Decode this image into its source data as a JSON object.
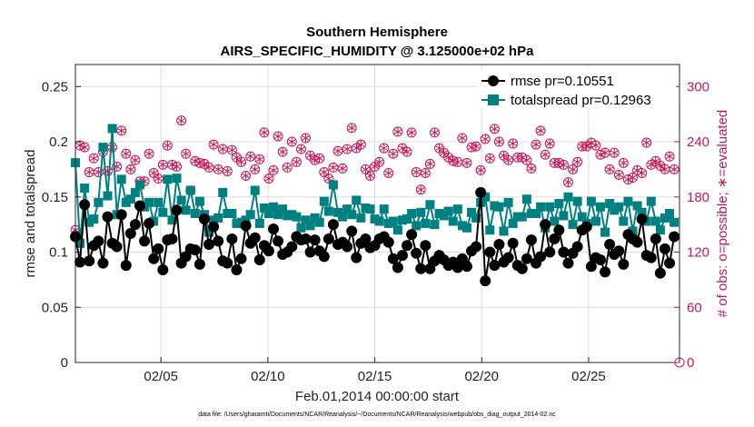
{
  "chart_data": {
    "type": "line",
    "title": "Southern Hemisphere",
    "subtitle": "AIRS_SPECIFIC_HUMIDITY @ 3.125000e+02 hPa",
    "xlabel": "Feb.01,2014 00:00:00 start",
    "ylabel_left": "rmse and totalspread",
    "ylabel_right": "# of obs: o=possible; ∗=evaluated",
    "footnote": "data file: /Users/gharamti/Documents/NCAR/Reanalysis/~/Documents/NCAR/Reanalysis/webpub/obs_diag_output_2014-02.nc",
    "xlim": [
      1,
      29.25
    ],
    "x_ticks": [
      5,
      10,
      15,
      20,
      25
    ],
    "x_tick_labels": [
      "02/05",
      "02/10",
      "02/15",
      "02/20",
      "02/25"
    ],
    "ylim_left": [
      0,
      0.27
    ],
    "y_ticks_left": [
      0,
      0.05,
      0.1,
      0.15,
      0.2,
      0.25
    ],
    "y_tick_labels_left": [
      "0",
      "0.05",
      "0.1",
      "0.15",
      "0.2",
      "0.25"
    ],
    "ylim_right": [
      0,
      324
    ],
    "y_ticks_right": [
      0,
      60,
      120,
      180,
      240,
      300
    ],
    "y_tick_labels_right": [
      "0",
      "60",
      "120",
      "180",
      "240",
      "300"
    ],
    "grid": true,
    "legend_position": "top-right",
    "colors": {
      "rmse": "#000000",
      "totalspread": "#008080",
      "obs": "#c8185a"
    },
    "series": [
      {
        "name": "rmse pr=0.10551",
        "axis": "left",
        "values": [
          0.114,
          0.091,
          0.143,
          0.092,
          0.106,
          0.11,
          0.09,
          0.132,
          0.108,
          0.105,
          0.134,
          0.088,
          0.117,
          0.125,
          0.142,
          0.11,
          0.126,
          0.094,
          0.103,
          0.084,
          0.111,
          0.112,
          0.138,
          0.09,
          0.096,
          0.103,
          0.102,
          0.089,
          0.13,
          0.107,
          0.123,
          0.11,
          0.092,
          0.09,
          0.112,
          0.084,
          0.094,
          0.124,
          0.108,
          0.113,
          0.093,
          0.106,
          0.101,
          0.121,
          0.11,
          0.098,
          0.1,
          0.105,
          0.114,
          0.111,
          0.112,
          0.1,
          0.111,
          0.101,
          0.096,
          0.112,
          0.125,
          0.107,
          0.109,
          0.105,
          0.119,
          0.095,
          0.108,
          0.112,
          0.104,
          0.106,
          0.112,
          0.114,
          0.109,
          0.094,
          0.086,
          0.097,
          0.106,
          0.116,
          0.099,
          0.085,
          0.106,
          0.085,
          0.092,
          0.097,
          0.093,
          0.088,
          0.091,
          0.086,
          0.094,
          0.087,
          0.101,
          0.105,
          0.154,
          0.074,
          0.1,
          0.088,
          0.107,
          0.091,
          0.095,
          0.108,
          0.088,
          0.085,
          0.094,
          0.111,
          0.09,
          0.096,
          0.125,
          0.1,
          0.112,
          0.12,
          0.1,
          0.09,
          0.099,
          0.105,
          0.12,
          0.123,
          0.087,
          0.095,
          0.093,
          0.082,
          0.107,
          0.098,
          0.101,
          0.089,
          0.116,
          0.112,
          0.109,
          0.13,
          0.097,
          0.095,
          0.112,
          0.081,
          0.103,
          0.09,
          0.114
        ]
      },
      {
        "name": "totalspread pr=0.12963",
        "axis": "left",
        "values": [
          0.181,
          0.108,
          0.158,
          0.127,
          0.13,
          0.145,
          0.195,
          0.151,
          0.212,
          0.134,
          0.166,
          0.145,
          0.148,
          0.154,
          0.161,
          0.141,
          0.145,
          0.128,
          0.145,
          0.136,
          0.166,
          0.129,
          0.167,
          0.147,
          0.138,
          0.156,
          0.135,
          0.146,
          0.134,
          0.118,
          0.129,
          0.131,
          0.154,
          0.135,
          0.135,
          0.126,
          0.127,
          0.129,
          0.134,
          0.156,
          0.126,
          0.14,
          0.135,
          0.141,
          0.134,
          0.139,
          0.133,
          0.134,
          0.132,
          0.122,
          0.129,
          0.124,
          0.131,
          0.127,
          0.146,
          0.137,
          0.161,
          0.136,
          0.132,
          0.139,
          0.134,
          0.147,
          0.131,
          0.14,
          0.139,
          0.13,
          0.128,
          0.139,
          0.126,
          0.128,
          0.12,
          0.129,
          0.13,
          0.135,
          0.124,
          0.136,
          0.126,
          0.143,
          0.125,
          0.135,
          0.133,
          0.137,
          0.128,
          0.139,
          0.124,
          0.122,
          0.136,
          0.131,
          0.145,
          0.15,
          0.12,
          0.142,
          0.141,
          0.119,
          0.145,
          0.126,
          0.132,
          0.132,
          0.148,
          0.135,
          0.135,
          0.141,
          0.122,
          0.141,
          0.128,
          0.144,
          0.133,
          0.15,
          0.125,
          0.146,
          0.132,
          0.126,
          0.146,
          0.128,
          0.141,
          0.118,
          0.144,
          0.138,
          0.141,
          0.128,
          0.146,
          0.119,
          0.142,
          0.136,
          0.128,
          0.146,
          0.128,
          0.12,
          0.131,
          0.135,
          0.127
        ]
      },
      {
        "name": "possible",
        "axis": "right",
        "marker": "circle",
        "values": [
          144,
          236,
          234,
          207,
          222,
          207,
          229,
          208,
          234,
          213,
          252,
          227,
          210,
          220,
          197,
          197,
          227,
          206,
          200,
          215,
          236,
          215,
          213,
          263,
          227,
          187,
          219,
          217,
          216,
          212,
          237,
          210,
          232,
          208,
          231,
          223,
          218,
          203,
          224,
          210,
          221,
          250,
          200,
          209,
          246,
          229,
          212,
          240,
          218,
          232,
          244,
          225,
          220,
          222,
          207,
          200,
          212,
          230,
          211,
          232,
          255,
          233,
          237,
          210,
          203,
          213,
          218,
          233,
          206,
          227,
          251,
          233,
          229,
          250,
          207,
          188,
          206,
          216,
          250,
          233,
          228,
          223,
          219,
          218,
          244,
          217,
          234,
          235,
          209,
          243,
          222,
          254,
          240,
          225,
          220,
          238,
          223,
          223,
          220,
          211,
          237,
          252,
          226,
          238,
          217,
          217,
          215,
          196,
          210,
          218,
          235,
          235,
          239,
          236,
          226,
          228,
          210,
          228,
          204,
          217,
          199,
          201,
          209,
          206,
          239,
          215,
          219,
          214,
          210,
          224,
          210
        ]
      },
      {
        "name": "evaluated",
        "axis": "right",
        "marker": "asterisk",
        "values": [
          144,
          236,
          234,
          207,
          222,
          207,
          229,
          208,
          234,
          213,
          252,
          227,
          210,
          220,
          197,
          197,
          227,
          206,
          200,
          215,
          236,
          215,
          213,
          263,
          227,
          187,
          219,
          217,
          216,
          212,
          237,
          210,
          232,
          208,
          231,
          223,
          218,
          203,
          224,
          210,
          221,
          250,
          200,
          209,
          246,
          229,
          212,
          240,
          218,
          232,
          244,
          225,
          220,
          222,
          207,
          200,
          212,
          230,
          211,
          232,
          255,
          233,
          237,
          210,
          203,
          213,
          218,
          233,
          206,
          227,
          251,
          233,
          229,
          250,
          207,
          188,
          206,
          216,
          250,
          233,
          228,
          223,
          219,
          218,
          244,
          217,
          234,
          235,
          209,
          243,
          222,
          254,
          240,
          225,
          220,
          238,
          223,
          223,
          220,
          211,
          237,
          252,
          226,
          238,
          217,
          217,
          215,
          196,
          210,
          218,
          235,
          235,
          239,
          236,
          226,
          228,
          210,
          228,
          204,
          217,
          199,
          201,
          209,
          206,
          239,
          215,
          219,
          214,
          210,
          224,
          210
        ]
      }
    ]
  }
}
